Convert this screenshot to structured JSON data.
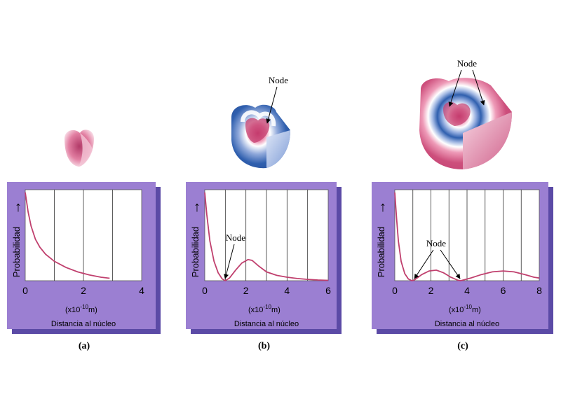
{
  "colors": {
    "panel_fill": "#9b7fd2",
    "panel_shadow": "#5b4aa6",
    "plot_bg": "#ffffff",
    "curve": "#c0406e",
    "pink": "#c84a78",
    "blue": "#2f5fae"
  },
  "common": {
    "ylabel": "Probabilidad",
    "arrow": "↑",
    "unit_prefix": "(x10",
    "unit_exponent": "-10",
    "unit_suffix": "m)",
    "xlabel": "Distancia al núcleo"
  },
  "panels": [
    {
      "id": "a",
      "caption": "(a)",
      "x_ticks": [
        "0",
        "2",
        "4"
      ],
      "node_label": "",
      "orbital_node_label": "",
      "chart_data": {
        "type": "line",
        "xlim": [
          0,
          4
        ],
        "x": [
          0,
          0.1,
          0.2,
          0.35,
          0.5,
          0.7,
          1.0,
          1.4,
          1.8,
          2.2,
          2.6,
          2.9
        ],
        "y": [
          1.0,
          0.78,
          0.62,
          0.47,
          0.38,
          0.3,
          0.22,
          0.15,
          0.1,
          0.065,
          0.04,
          0.028
        ]
      }
    },
    {
      "id": "b",
      "caption": "(b)",
      "x_ticks": [
        "0",
        "2",
        "4",
        "6"
      ],
      "node_label": "Node",
      "orbital_node_label": "Node",
      "chart_data": {
        "type": "line",
        "xlim": [
          0,
          6
        ],
        "x": [
          0,
          0.1,
          0.25,
          0.45,
          0.65,
          0.85,
          1.0,
          1.2,
          1.5,
          1.8,
          2.1,
          2.3,
          2.6,
          3.0,
          3.5,
          4.0,
          4.5,
          5.0,
          5.5,
          6.0
        ],
        "y": [
          1.0,
          0.75,
          0.45,
          0.22,
          0.09,
          0.02,
          0.0,
          0.03,
          0.12,
          0.2,
          0.24,
          0.23,
          0.17,
          0.1,
          0.06,
          0.04,
          0.025,
          0.015,
          0.008,
          0.004
        ]
      }
    },
    {
      "id": "c",
      "caption": "(c)",
      "x_ticks": [
        "0",
        "2",
        "4",
        "6",
        "8"
      ],
      "node_label": "Node",
      "orbital_node_label": "Node",
      "chart_data": {
        "type": "line",
        "xlim": [
          0,
          8
        ],
        "x": [
          0,
          0.1,
          0.2,
          0.35,
          0.55,
          0.75,
          0.95,
          1.1,
          1.5,
          1.9,
          2.3,
          2.7,
          3.1,
          3.5,
          3.65,
          4.2,
          4.8,
          5.4,
          6.0,
          6.6,
          7.2,
          7.7,
          8.0
        ],
        "y": [
          1.0,
          0.7,
          0.45,
          0.22,
          0.08,
          0.02,
          0.0,
          0.01,
          0.07,
          0.11,
          0.12,
          0.09,
          0.04,
          0.005,
          0.0,
          0.03,
          0.07,
          0.1,
          0.11,
          0.1,
          0.07,
          0.04,
          0.03
        ]
      }
    }
  ]
}
